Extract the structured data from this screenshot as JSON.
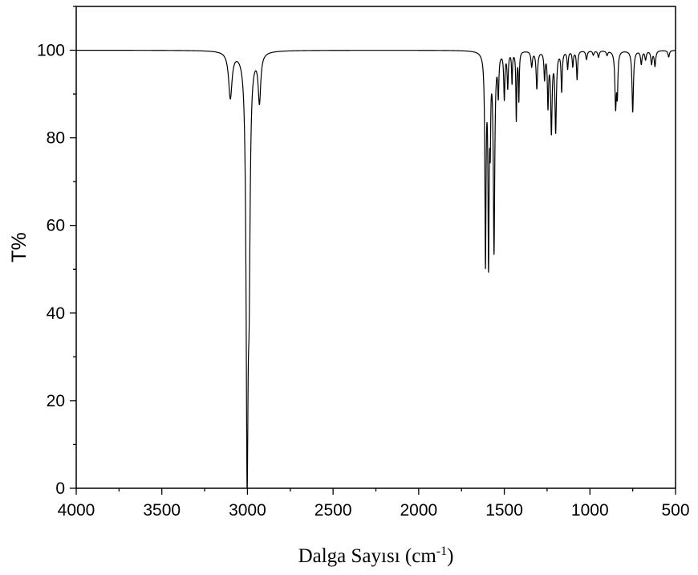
{
  "chart_data": {
    "type": "line",
    "title": "",
    "xlabel": "Dalga Sayısı (cm",
    "xlabel_sup": "-1",
    "xlabel_close": ")",
    "ylabel": "T%",
    "xlim": [
      4000,
      500
    ],
    "ylim": [
      0,
      110
    ],
    "x_reversed": true,
    "grid": false,
    "colors": {
      "line": "#000000",
      "axis": "#000000",
      "background": "#ffffff"
    },
    "x_ticks": [
      4000,
      3500,
      3000,
      2500,
      2000,
      1500,
      1000,
      500
    ],
    "x_tick_labels": [
      "4000",
      "3500",
      "3000",
      "2500",
      "2000",
      "1500",
      "1000",
      "500"
    ],
    "y_ticks": [
      0,
      20,
      40,
      60,
      80,
      100
    ],
    "y_tick_labels": [
      "0",
      "20",
      "40",
      "60",
      "80",
      "100"
    ],
    "baseline": 100,
    "series": [
      {
        "peaks": [
          {
            "x": 3100,
            "y": 89.5,
            "w": 12
          },
          {
            "x": 3002,
            "y": 10,
            "w": 7
          },
          {
            "x": 2990,
            "y": 60,
            "w": 7
          },
          {
            "x": 2930,
            "y": 89,
            "w": 9
          },
          {
            "x": 1610,
            "y": 53,
            "w": 4
          },
          {
            "x": 1592,
            "y": 54,
            "w": 4
          },
          {
            "x": 1582,
            "y": 84,
            "w": 3
          },
          {
            "x": 1560,
            "y": 55,
            "w": 5
          },
          {
            "x": 1535,
            "y": 91,
            "w": 4
          },
          {
            "x": 1500,
            "y": 89.5,
            "w": 4
          },
          {
            "x": 1480,
            "y": 92,
            "w": 4
          },
          {
            "x": 1455,
            "y": 93,
            "w": 3
          },
          {
            "x": 1430,
            "y": 84.5,
            "w": 3
          },
          {
            "x": 1415,
            "y": 89,
            "w": 3
          },
          {
            "x": 1340,
            "y": 96.5,
            "w": 5
          },
          {
            "x": 1310,
            "y": 91.5,
            "w": 5
          },
          {
            "x": 1265,
            "y": 94,
            "w": 4
          },
          {
            "x": 1245,
            "y": 88,
            "w": 4
          },
          {
            "x": 1225,
            "y": 82,
            "w": 5
          },
          {
            "x": 1200,
            "y": 82,
            "w": 5
          },
          {
            "x": 1165,
            "y": 91,
            "w": 4
          },
          {
            "x": 1130,
            "y": 96,
            "w": 4
          },
          {
            "x": 1100,
            "y": 96.5,
            "w": 4
          },
          {
            "x": 1075,
            "y": 93.5,
            "w": 4
          },
          {
            "x": 1020,
            "y": 98,
            "w": 5
          },
          {
            "x": 980,
            "y": 99,
            "w": 5
          },
          {
            "x": 950,
            "y": 98.5,
            "w": 5
          },
          {
            "x": 900,
            "y": 99,
            "w": 5
          },
          {
            "x": 850,
            "y": 87.5,
            "w": 5
          },
          {
            "x": 840,
            "y": 91,
            "w": 4
          },
          {
            "x": 750,
            "y": 86,
            "w": 5
          },
          {
            "x": 700,
            "y": 97,
            "w": 5
          },
          {
            "x": 675,
            "y": 98,
            "w": 5
          },
          {
            "x": 640,
            "y": 97,
            "w": 5
          },
          {
            "x": 620,
            "y": 96.5,
            "w": 5
          },
          {
            "x": 540,
            "y": 98.5,
            "w": 5
          }
        ]
      }
    ]
  }
}
